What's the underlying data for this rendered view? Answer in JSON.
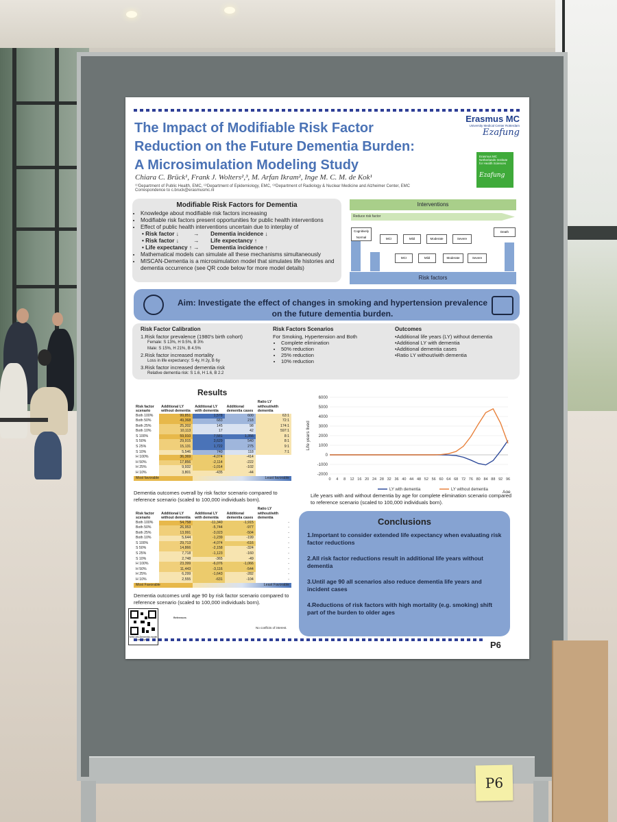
{
  "poster": {
    "title_lines": [
      "The Impact of Modifiable Risk Factor",
      "Reduction on the Future Dementia Burden:",
      "A Microsimulation Modeling Study"
    ],
    "authors": "Chiara C. Brück¹, Frank J. Wolters²,³, M. Arfan Ikram², Inge M. C. M. de Kok¹",
    "affiliations": "⁽¹⁾Department of Public Health, EMC, ⁽²⁾Department of Epidemiology, EMC, ⁽³⁾Department of Radiology & Nuclear Medicine and Alzheimer Center, EMC",
    "correspondence": "Correspondence to c.bruck@erasmusmc.nl",
    "logo_title": "Erasmus MC",
    "logo_sub": "University Medical Center Rotterdam",
    "logo_script": "Ezafung",
    "logo2_text": "Erasmus MC Netherlands Institute for Health Sciences",
    "logo2_script": "Ezafung",
    "mrf": {
      "heading": "Modifiable Risk Factors for Dementia",
      "bullets": [
        "Knowledge about modifiable risk factors increasing",
        "Modifiable risk factors present opportunities for public health interventions",
        "Effect of public health interventions uncertain due to interplay of"
      ],
      "interplay": [
        {
          "a": "Risk factor ↓",
          "arrow": "→",
          "b": "Dementia incidence ↓"
        },
        {
          "a": "Risk factor ↓",
          "arrow": "→",
          "b": "Life expectancy ↑"
        },
        {
          "a": "Life expectancy ↑",
          "arrow": "→",
          "b": "Dementia incidence ↑"
        }
      ],
      "bullets2": [
        "Mathematical models can simulate all these mechanisms simultaneously",
        "MISCAN-Dementia is a microsimulation model that simulates life histories and dementia occurrence (see QR code below for more model details)"
      ]
    },
    "diagram": {
      "interventions": "Interventions",
      "reduce": "Reduce risk factor",
      "risk_factors": "Risk factors",
      "states": [
        "Cognitively Normal",
        "MCI",
        "Mild",
        "Moderate",
        "Severe",
        "MCI",
        "Mild",
        "Moderate",
        "Severe",
        "Death"
      ],
      "side_left": "Risk factor prevalence",
      "side_mid": "Increased",
      "side_right": "Increased mortality"
    },
    "aim": "Aim: Investigate the effect of changes in smoking and hypertension prevalence on the future dementia burden.",
    "calibration": {
      "heading": "Risk Factor Calibration",
      "items": [
        {
          "main": "1.Risk factor prevalence (1980's birth cohort)",
          "subs": [
            "Female: S 13%, H 9.5%, B 3%",
            "Male: S 15%, H 21%, B 4.5%"
          ]
        },
        {
          "main": "2.Risk factor increased mortality",
          "subs": [
            "Loss in life expectancy: S 4y, H 2y, B 6y"
          ]
        },
        {
          "main": "3.Risk factor increased dementia risk",
          "subs": [
            "Relative dementia risk: S 1.6, H 1.6, B 2.2"
          ]
        }
      ]
    },
    "scenarios": {
      "heading": "Risk Factors Scenarios",
      "intro": "For Smoking, Hypertension and Both",
      "items": [
        "Complete elimination",
        "50% reduction",
        "25% reduction",
        "10% reduction"
      ]
    },
    "outcomes": {
      "heading": "Outcomes",
      "items": [
        "•Additional life years (LY) without dementia",
        "•Additional LY with dementia",
        "•Additional dementia cases",
        "•Ratio LY without/with dementia"
      ]
    },
    "results_title": "Results",
    "table1": {
      "headers": [
        "Risk factor scenario",
        "Additional LY without dementia",
        "Additional LY with dementia",
        "Additional dementia cases",
        "Ratio LY without/with dementia"
      ],
      "rows": [
        [
          "Both 100%",
          "99,851",
          "1,578",
          "600",
          "63:1"
        ],
        [
          "Both 50%",
          "49,368",
          "683",
          "218",
          "72:1"
        ],
        [
          "Both 25%",
          "25,202",
          "145",
          "98",
          "174:1"
        ],
        [
          "Both 10%",
          "10,113",
          "17",
          "42",
          "597:1"
        ],
        [
          "S 100%",
          "59,910",
          "7,581",
          "1,356",
          "8:1"
        ],
        [
          "S 50%",
          "29,915",
          "3,629",
          "540",
          "8:1"
        ],
        [
          "S 25%",
          "15,131",
          "1,722",
          "275",
          "9:1"
        ],
        [
          "S 10%",
          "5,546",
          "740",
          "118",
          "7:1"
        ],
        [
          "H 100%",
          "36,369",
          "-4,074",
          "-414",
          ""
        ],
        [
          "H 50%",
          "17,856",
          "-2,114",
          "-222",
          ""
        ],
        [
          "H 25%",
          "9,932",
          "-1,014",
          "-102",
          ""
        ],
        [
          "H 10%",
          "3,801",
          "-435",
          "-44",
          ""
        ]
      ],
      "legend_low": "Most favorable",
      "legend_high": "Least favorable",
      "caption": "Dementia outcomes overall by risk factor scenario compared to reference scenario (scaled to 100,000 individuals born)."
    },
    "table2": {
      "headers": [
        "Risk factor scenario",
        "Additional LY without dementia",
        "Additional LY with dementia",
        "Additional dementia cases",
        "Ratio LY without/with dementia"
      ],
      "rows": [
        [
          "Both 100%",
          "54,758",
          "-11,340",
          "-1,915",
          "-"
        ],
        [
          "Both 50%",
          "26,953",
          "-5,744",
          "-977",
          "-"
        ],
        [
          "Both 25%",
          "13,991",
          "-3,023",
          "-504",
          "-"
        ],
        [
          "Both 10%",
          "5,644",
          "-1,239",
          "-199",
          "-"
        ],
        [
          "S 100%",
          "29,713",
          "-4,074",
          "-616",
          "-"
        ],
        [
          "S 50%",
          "14,866",
          "-2,158",
          "-324",
          "-"
        ],
        [
          "S 25%",
          "7,718",
          "-1,123",
          "-160",
          "-"
        ],
        [
          "S 10%",
          "2,748",
          "-365",
          "-49",
          "-"
        ],
        [
          "H 100%",
          "23,399",
          "-6,076",
          "-1,066",
          "-"
        ],
        [
          "H 50%",
          "11,443",
          "-3,116",
          "-544",
          "-"
        ],
        [
          "H 25%",
          "6,299",
          "-1,643",
          "-282",
          "-"
        ],
        [
          "H 10%",
          "2,555",
          "-631",
          "-104",
          "-"
        ]
      ],
      "legend_low": "Most Favorable",
      "legend_high": "Least Favorable",
      "caption": "Dementia outcomes until age 90 by risk factor scenario compared to reference scenario (scaled to 100,000 individuals born)."
    },
    "chart_caption": "Life years with and without dementia by age for complete elimination scenario compared to reference scenario (scaled to 100,000 individuals born).",
    "conclusions": {
      "heading": "Conclusions",
      "items": [
        "1.Important to consider extended life expectancy when evaluating risk factor reductions",
        "2.All risk factor reductions result in additional life years without dementia",
        "3.Until age 90 all scenarios also reduce dementia life years and incident cases",
        "4.Reductions of risk factors with high mortality (e.g. smoking) shift part of the burden to older ages"
      ]
    },
    "qr_label": "MISCAN-Dementia model description",
    "references_heading": "References",
    "no_conflicts": "No conflicts of interest.",
    "poster_id": "P6"
  },
  "sticky_note": "P6",
  "colors": {
    "title_blue": "#4a72b5",
    "box_blue": "#86a3d2",
    "green": "#a9cf8a",
    "orange": "#e8a048",
    "navy": "#2e3f96"
  },
  "chart_data": {
    "type": "line",
    "x": [
      0,
      4,
      8,
      12,
      16,
      20,
      24,
      28,
      32,
      36,
      40,
      44,
      48,
      52,
      56,
      60,
      64,
      68,
      72,
      76,
      80,
      84,
      88,
      92,
      96
    ],
    "xlabel": "Age",
    "ylabel": "Life years lived",
    "ylim": [
      -2000,
      6000
    ],
    "yticks": [
      -2000,
      -1000,
      0,
      1000,
      2000,
      3000,
      4000,
      5000,
      6000
    ],
    "series": [
      {
        "name": "LY with dementia",
        "color": "#2e4a9a",
        "values": [
          0,
          0,
          0,
          0,
          0,
          0,
          0,
          0,
          0,
          0,
          0,
          0,
          0,
          0,
          0,
          0,
          -20,
          -80,
          -250,
          -550,
          -900,
          -1050,
          -600,
          400,
          1500
        ]
      },
      {
        "name": "LY without dementia",
        "color": "#e8803a",
        "values": [
          0,
          0,
          0,
          0,
          0,
          0,
          0,
          0,
          0,
          0,
          0,
          0,
          0,
          0,
          0,
          30,
          120,
          350,
          900,
          1900,
          3200,
          4400,
          4800,
          3300,
          1200
        ]
      }
    ]
  }
}
